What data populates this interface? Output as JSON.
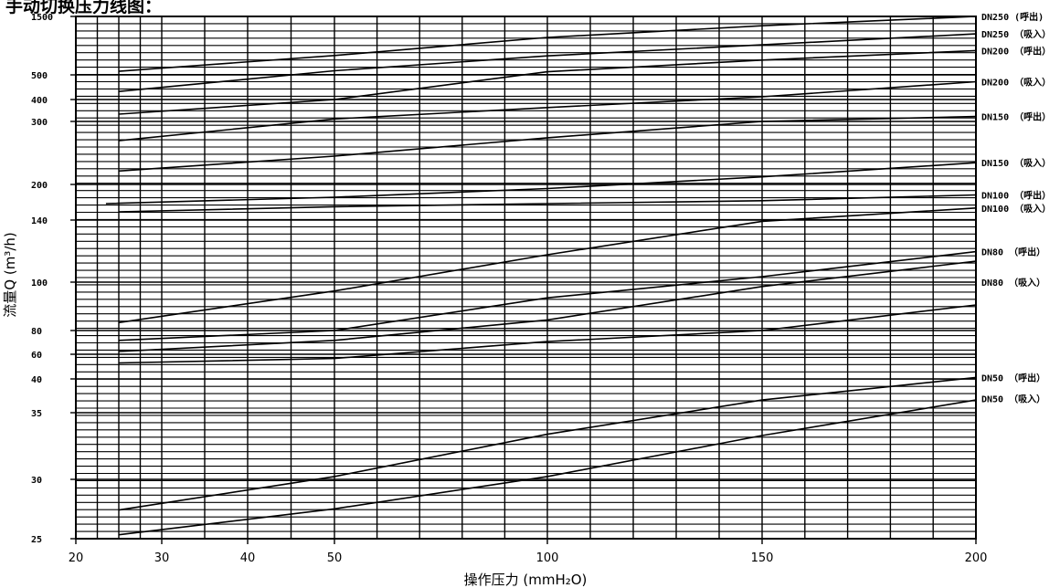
{
  "header": {
    "title": "手动切换压力线图："
  },
  "chart_data": {
    "type": "line",
    "title": "手动切换压力线图：",
    "xlabel": "操作压力 (mmH₂O)",
    "ylabel": "流量Q (m³/h)",
    "xlim": [
      20,
      200
    ],
    "ylim": [
      25,
      1500
    ],
    "x_ticks": [
      {
        "value": 20,
        "label": "20"
      },
      {
        "value": 30,
        "label": "30"
      },
      {
        "value": 40,
        "label": "40"
      },
      {
        "value": 50,
        "label": "50"
      },
      {
        "value": 100,
        "label": "100"
      },
      {
        "value": 150,
        "label": "150"
      },
      {
        "value": 200,
        "label": "200"
      }
    ],
    "y_ticks": [
      {
        "value": 1500,
        "label": "1500"
      },
      {
        "value": 500,
        "label": "500"
      },
      {
        "value": 400,
        "label": "400"
      },
      {
        "value": 300,
        "label": "300"
      },
      {
        "value": 200,
        "label": "200"
      },
      {
        "value": 140,
        "label": "140"
      },
      {
        "value": 100,
        "label": "100"
      },
      {
        "value": 80,
        "label": "80"
      },
      {
        "value": 60,
        "label": "60"
      },
      {
        "value": 40,
        "label": "40"
      },
      {
        "value": 35,
        "label": "35"
      },
      {
        "value": 30,
        "label": "30"
      },
      {
        "value": 25,
        "label": "25"
      }
    ],
    "x_grid": [
      22.5,
      25,
      27.5,
      30,
      35,
      40,
      45,
      50,
      60,
      70,
      80,
      90,
      100,
      110,
      120,
      130,
      140,
      150,
      160,
      170,
      180,
      190,
      200
    ],
    "grid": true,
    "series": [
      {
        "name": "DN250 (呼出)",
        "points": [
          [
            25,
            535
          ],
          [
            50,
            720
          ],
          [
            100,
            1010
          ],
          [
            150,
            1260
          ],
          [
            200,
            1500
          ]
        ]
      },
      {
        "name": "DN250 （吸入）",
        "points": [
          [
            25,
            430
          ],
          [
            50,
            540
          ],
          [
            100,
            715
          ],
          [
            150,
            880
          ],
          [
            200,
            1080
          ]
        ]
      },
      {
        "name": "DN200 （呼出）",
        "points": [
          [
            25,
            330
          ],
          [
            50,
            400
          ],
          [
            100,
            530
          ],
          [
            150,
            660
          ],
          [
            200,
            790
          ]
        ]
      },
      {
        "name": "DN200 （吸入）",
        "points": [
          [
            25,
            265
          ],
          [
            50,
            310
          ],
          [
            100,
            360
          ],
          [
            150,
            410
          ],
          [
            200,
            470
          ]
        ]
      },
      {
        "name": "DN150 （呼出）",
        "points": [
          [
            25,
            218
          ],
          [
            50,
            240
          ],
          [
            100,
            270
          ],
          [
            150,
            300
          ],
          [
            200,
            320
          ]
        ]
      },
      {
        "name": "DN150 （吸入）",
        "points": [
          [
            23.5,
            165
          ],
          [
            50,
            176
          ],
          [
            100,
            192
          ],
          [
            150,
            210
          ],
          [
            200,
            230
          ]
        ]
      },
      {
        "name": "DN100 （呼出）",
        "points": [
          [
            25,
            152
          ],
          [
            50,
            160
          ],
          [
            100,
            165
          ],
          [
            150,
            170
          ],
          [
            200,
            180
          ]
        ]
      },
      {
        "name": "DN100 （吸入）",
        "points": [
          [
            25,
            83
          ],
          [
            50,
            96
          ],
          [
            100,
            116
          ],
          [
            150,
            139
          ],
          [
            200,
            158
          ]
        ]
      },
      {
        "name": "DN80 （呼出）",
        "points": [
          [
            25,
            71
          ],
          [
            50,
            80
          ],
          [
            100,
            93
          ],
          [
            150,
            103
          ],
          [
            200,
            118
          ]
        ]
      },
      {
        "name": "DN80 （吸入）",
        "points": [
          [
            25,
            62
          ],
          [
            50,
            71
          ],
          [
            100,
            84
          ],
          [
            150,
            98
          ],
          [
            200,
            112
          ]
        ]
      },
      {
        "name": "DN80 （吸入）-2",
        "points": [
          [
            25,
            52
          ],
          [
            50,
            56
          ],
          [
            100,
            70
          ],
          [
            150,
            80
          ],
          [
            200,
            90
          ]
        ]
      },
      {
        "name": "DN50 （呼出）",
        "points": [
          [
            25,
            27.3
          ],
          [
            50,
            30.2
          ],
          [
            100,
            33.3
          ],
          [
            150,
            36.8
          ],
          [
            200,
            41
          ]
        ]
      },
      {
        "name": "DN50 （吸入）",
        "points": [
          [
            25,
            25.3
          ],
          [
            50,
            27.4
          ],
          [
            100,
            30.2
          ],
          [
            150,
            33.2
          ],
          [
            200,
            36.8
          ]
        ]
      }
    ],
    "series_labels": [
      {
        "text": "DN250 (呼出)",
        "value": 1500
      },
      {
        "text": "DN250 （吸入）",
        "value": 1080
      },
      {
        "text": "DN200 （呼出）",
        "value": 790
      },
      {
        "text": "DN200 （吸入）",
        "value": 470
      },
      {
        "text": "DN150 （呼出）",
        "value": 320
      },
      {
        "text": "DN150 （吸入）",
        "value": 230
      },
      {
        "text": "DN100 （呼出）",
        "value": 180
      },
      {
        "text": "DN100 （吸入）",
        "value": 158
      },
      {
        "text": "DN80 （呼出）",
        "value": 118
      },
      {
        "text": "DN80 （吸入）",
        "value": 100
      },
      {
        "text": "DN50 （呼出）",
        "value": 41
      },
      {
        "text": "DN50 （吸入）",
        "value": 37
      }
    ]
  }
}
